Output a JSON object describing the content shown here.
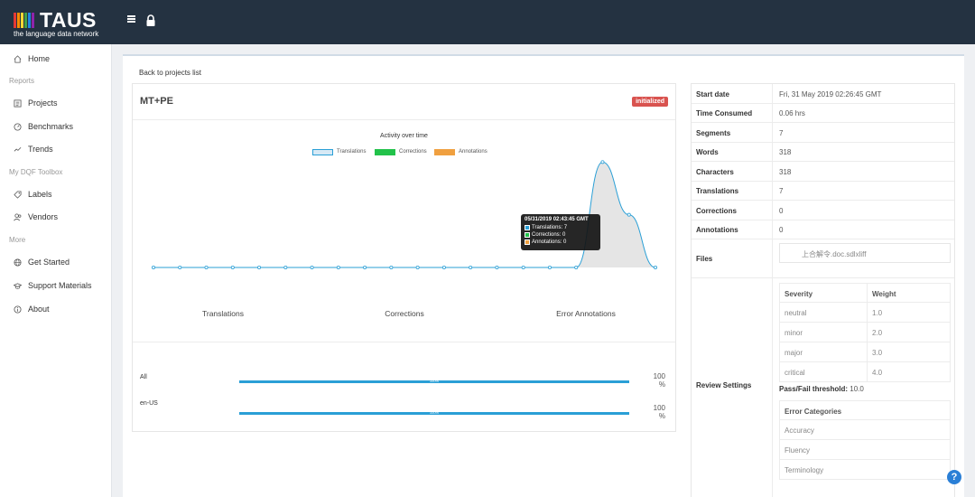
{
  "brand": {
    "name": "TAUS",
    "tagline": "the language data network",
    "bar_colors": [
      "#e53935",
      "#fb8c00",
      "#fdd835",
      "#43a047",
      "#1e88e5",
      "#8e24aa"
    ]
  },
  "topbar": {
    "menu_icon": "hamburger-icon",
    "lock_icon": "lock-icon"
  },
  "sidebar": {
    "home": "Home",
    "section_reports": "Reports",
    "projects": "Projects",
    "benchmarks": "Benchmarks",
    "trends": "Trends",
    "section_toolbox": "My DQF Toolbox",
    "labels": "Labels",
    "vendors": "Vendors",
    "section_more": "More",
    "get_started": "Get Started",
    "support_materials": "Support Materials",
    "about": "About"
  },
  "main": {
    "back_link": "Back to projects list",
    "project_title": "MT+PE",
    "status_badge": "initialized",
    "tabs": [
      "Translations",
      "Corrections",
      "Error Annotations"
    ]
  },
  "chart_data": {
    "type": "area",
    "title": "Activity over time",
    "legend": [
      "Translations",
      "Corrections",
      "Annotations"
    ],
    "series_colors": [
      "#2a9fd6",
      "#22c24a",
      "#f0a040"
    ],
    "points": [
      0,
      0,
      0,
      0,
      0,
      0,
      0,
      0,
      0,
      0,
      0,
      0,
      0,
      0,
      0,
      0,
      0,
      7,
      3.5,
      0
    ],
    "ylim": [
      0,
      7.5
    ],
    "tooltip": {
      "title": "05/31/2019 02:43:45 GMT",
      "translations": "Translations: 7",
      "corrections": "Corrections: 0",
      "annotations": "Annotations: 0"
    }
  },
  "progress": [
    {
      "label": "All",
      "value": 100,
      "inner": "100%",
      "pct_top": "100",
      "pct_unit": "%"
    },
    {
      "label": "en-US",
      "value": 100,
      "inner": "100%",
      "pct_top": "100",
      "pct_unit": "%"
    }
  ],
  "info": {
    "start_date_label": "Start date",
    "start_date": "Fri, 31 May 2019 02:26:45 GMT",
    "time_label": "Time Consumed",
    "time": "0.06 hrs",
    "segments_label": "Segments",
    "segments": "7",
    "words_label": "Words",
    "words": "318",
    "characters_label": "Characters",
    "characters": "318",
    "translations_label": "Translations",
    "translations": "7",
    "corrections_label": "Corrections",
    "corrections": "0",
    "annotations_label": "Annotations",
    "annotations": "0",
    "files_label": "Files",
    "file_name": "上合解令.doc.sdlxliff",
    "review_label": "Review Settings",
    "severity_head": "Severity",
    "weight_head": "Weight",
    "severities": [
      {
        "name": "neutral",
        "weight": "1.0"
      },
      {
        "name": "minor",
        "weight": "2.0"
      },
      {
        "name": "major",
        "weight": "3.0"
      },
      {
        "name": "critical",
        "weight": "4.0"
      }
    ],
    "threshold_label": "Pass/Fail threshold:",
    "threshold_value": "10.0",
    "categories_head": "Error Categories",
    "categories": [
      "Accuracy",
      "Fluency",
      "Terminology"
    ]
  },
  "help": "?"
}
